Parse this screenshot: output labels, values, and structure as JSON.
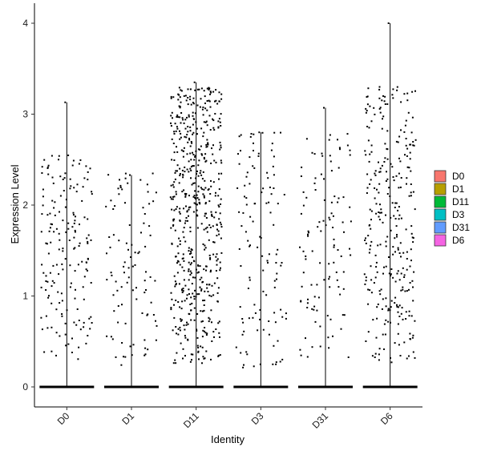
{
  "chart_data": {
    "type": "violin-jitter",
    "xlabel": "Identity",
    "ylabel": "Expression Level",
    "categories": [
      "D0",
      "D1",
      "D11",
      "D3",
      "D31",
      "D6"
    ],
    "ylim": [
      -0.25,
      4.25
    ],
    "yticks": [
      0,
      1,
      2,
      3,
      4
    ],
    "grid": false,
    "legend_position": "right",
    "legend": [
      {
        "name": "D0",
        "color": "#F8766D"
      },
      {
        "name": "D1",
        "color": "#B79F00"
      },
      {
        "name": "D11",
        "color": "#00BA38"
      },
      {
        "name": "D3",
        "color": "#00BFC4"
      },
      {
        "name": "D31",
        "color": "#619CFF"
      },
      {
        "name": "D6",
        "color": "#F564E3"
      }
    ],
    "groups": [
      {
        "name": "D0",
        "max": 3.13,
        "n_nonzero": 170,
        "lo": 0.3,
        "hi": 2.55
      },
      {
        "name": "D1",
        "max": 2.33,
        "n_nonzero": 95,
        "lo": 0.2,
        "hi": 2.35
      },
      {
        "name": "D11",
        "max": 3.35,
        "n_nonzero": 580,
        "lo": 0.25,
        "hi": 3.3
      },
      {
        "name": "D3",
        "max": 2.8,
        "n_nonzero": 115,
        "lo": 0.15,
        "hi": 2.8
      },
      {
        "name": "D31",
        "max": 3.07,
        "n_nonzero": 110,
        "lo": 0.3,
        "hi": 2.8
      },
      {
        "name": "D6",
        "max": 4.0,
        "n_nonzero": 300,
        "lo": 0.25,
        "hi": 3.3
      }
    ]
  }
}
